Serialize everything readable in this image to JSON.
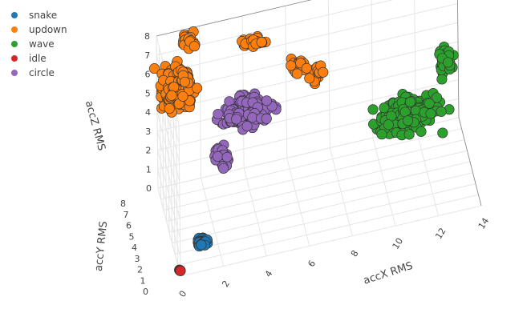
{
  "chart_data": {
    "type": "scatter3d",
    "axes": {
      "x": {
        "label": "accX RMS",
        "range": [
          0,
          14
        ],
        "ticks": [
          "0",
          "2",
          "4",
          "6",
          "8",
          "10",
          "12",
          "14"
        ]
      },
      "y": {
        "label": "accY RMS",
        "range": [
          0,
          8
        ],
        "ticks": [
          "0",
          "1",
          "2",
          "3",
          "4",
          "5",
          "6",
          "7",
          "8"
        ]
      },
      "z": {
        "label": "accZ RMS",
        "range": [
          0,
          8
        ],
        "ticks": [
          "0",
          "1",
          "2",
          "3",
          "4",
          "5",
          "6",
          "7",
          "8"
        ]
      }
    },
    "legend_position": "top-left",
    "grid": true,
    "series": [
      {
        "name": "snake",
        "color": "#1f77b4"
      },
      {
        "name": "updown",
        "color": "#ff7f0e"
      },
      {
        "name": "wave",
        "color": "#2ca02c"
      },
      {
        "name": "idle",
        "color": "#d62728"
      },
      {
        "name": "circle",
        "color": "#9467bd"
      }
    ]
  }
}
